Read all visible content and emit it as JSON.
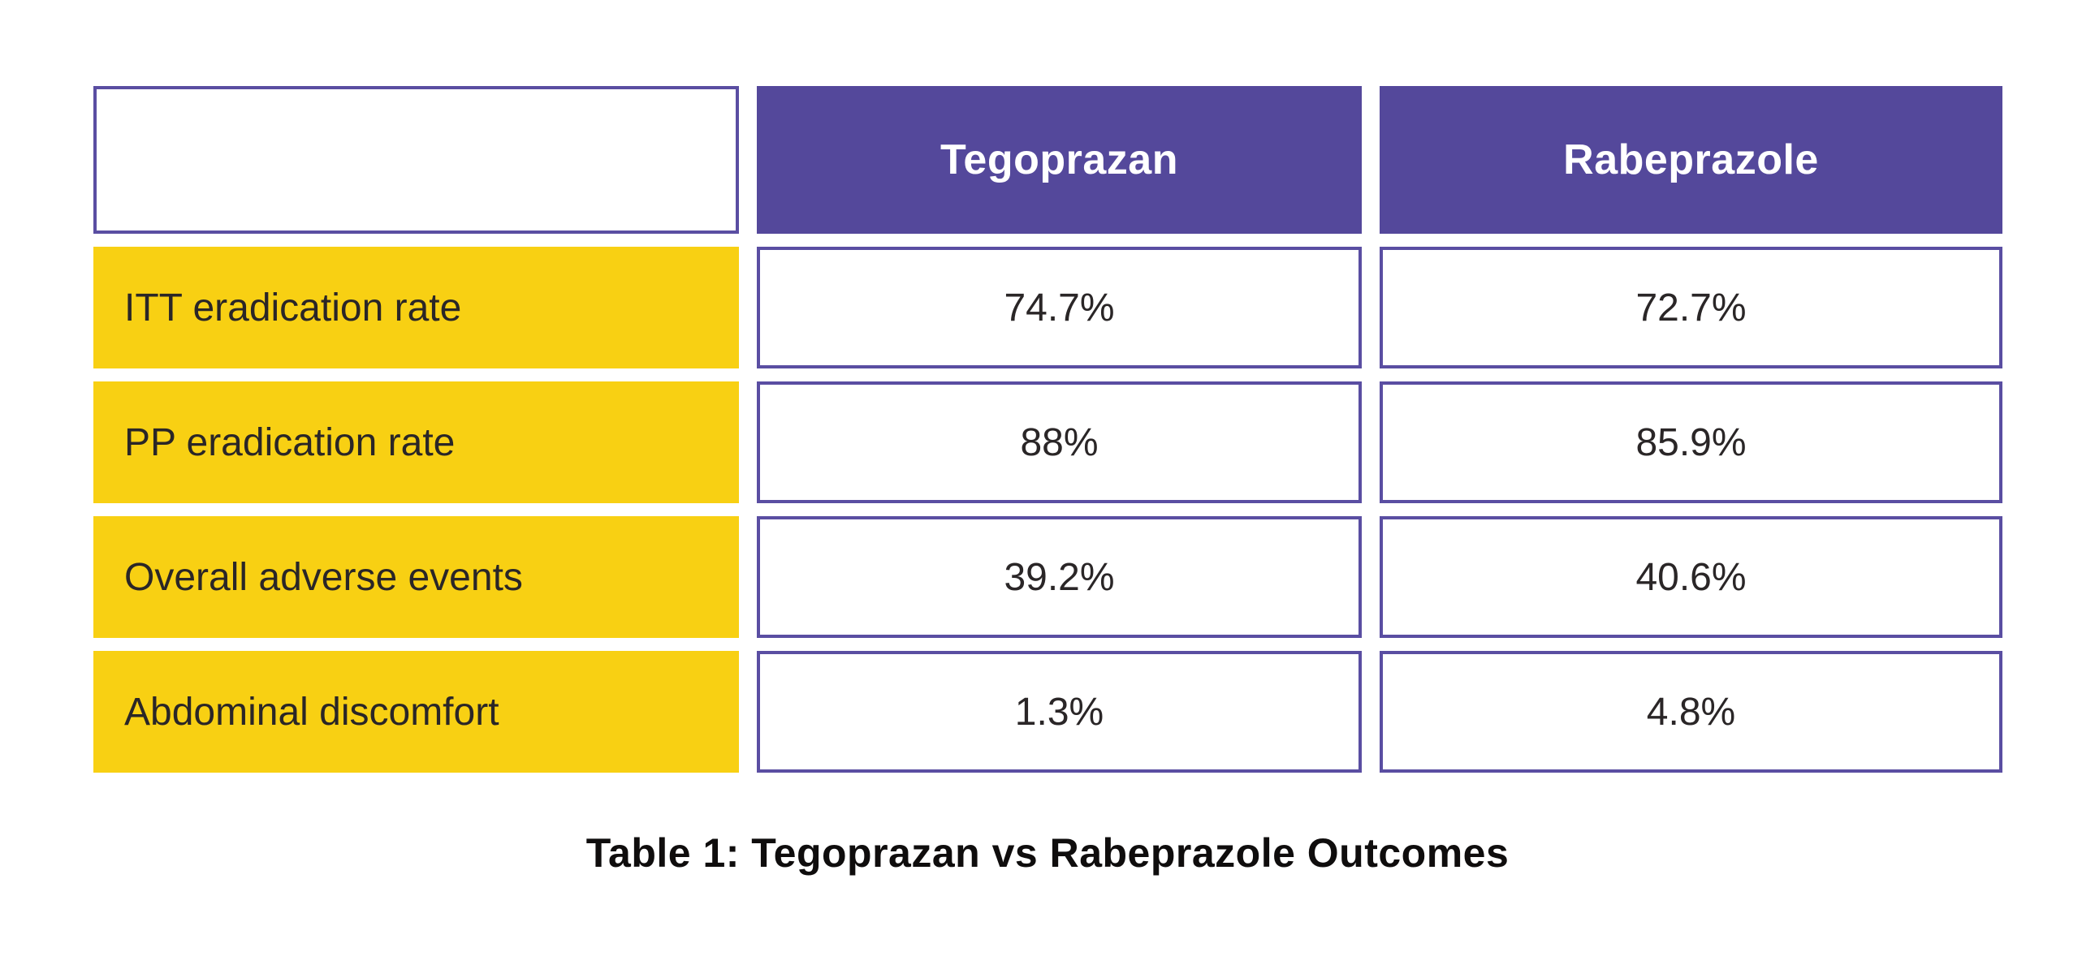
{
  "caption": "Table 1: Tegoprazan vs Rabeprazole Outcomes",
  "table": {
    "columns": [
      "Tegoprazan",
      "Rabeprazole"
    ],
    "rows": [
      {
        "label": "ITT eradication rate",
        "values": [
          "74.7%",
          "72.7%"
        ]
      },
      {
        "label": "PP eradication rate",
        "values": [
          "88%",
          "85.9%"
        ]
      },
      {
        "label": "Overall adverse events",
        "values": [
          "39.2%",
          "40.6%"
        ]
      },
      {
        "label": "Abdominal discomfort",
        "values": [
          "1.3%",
          "4.8%"
        ]
      }
    ]
  },
  "colors": {
    "purple": "#54489b",
    "purple-border": "#5a4ea2",
    "yellow": "#f8d013",
    "ink": "#2a2627",
    "caption-ink": "#0f0d0d",
    "paper": "#ffffff"
  },
  "chart_data": {
    "type": "table",
    "title": "Table 1: Tegoprazan vs Rabeprazole Outcomes",
    "columns": [
      "",
      "Tegoprazan",
      "Rabeprazole"
    ],
    "rows": [
      [
        "ITT eradication rate",
        "74.7%",
        "72.7%"
      ],
      [
        "PP eradication rate",
        "88%",
        "85.9%"
      ],
      [
        "Overall adverse events",
        "39.2%",
        "40.6%"
      ],
      [
        "Abdominal discomfort",
        "1.3%",
        "4.8%"
      ]
    ],
    "categories": [
      "ITT eradication rate",
      "PP eradication rate",
      "Overall adverse events",
      "Abdominal discomfort"
    ],
    "series": [
      {
        "name": "Tegoprazan",
        "values": [
          74.7,
          88,
          39.2,
          1.3
        ]
      },
      {
        "name": "Rabeprazole",
        "values": [
          72.7,
          85.9,
          40.6,
          4.8
        ]
      }
    ],
    "unit": "%",
    "legend_position": "header-row",
    "grid": false
  }
}
